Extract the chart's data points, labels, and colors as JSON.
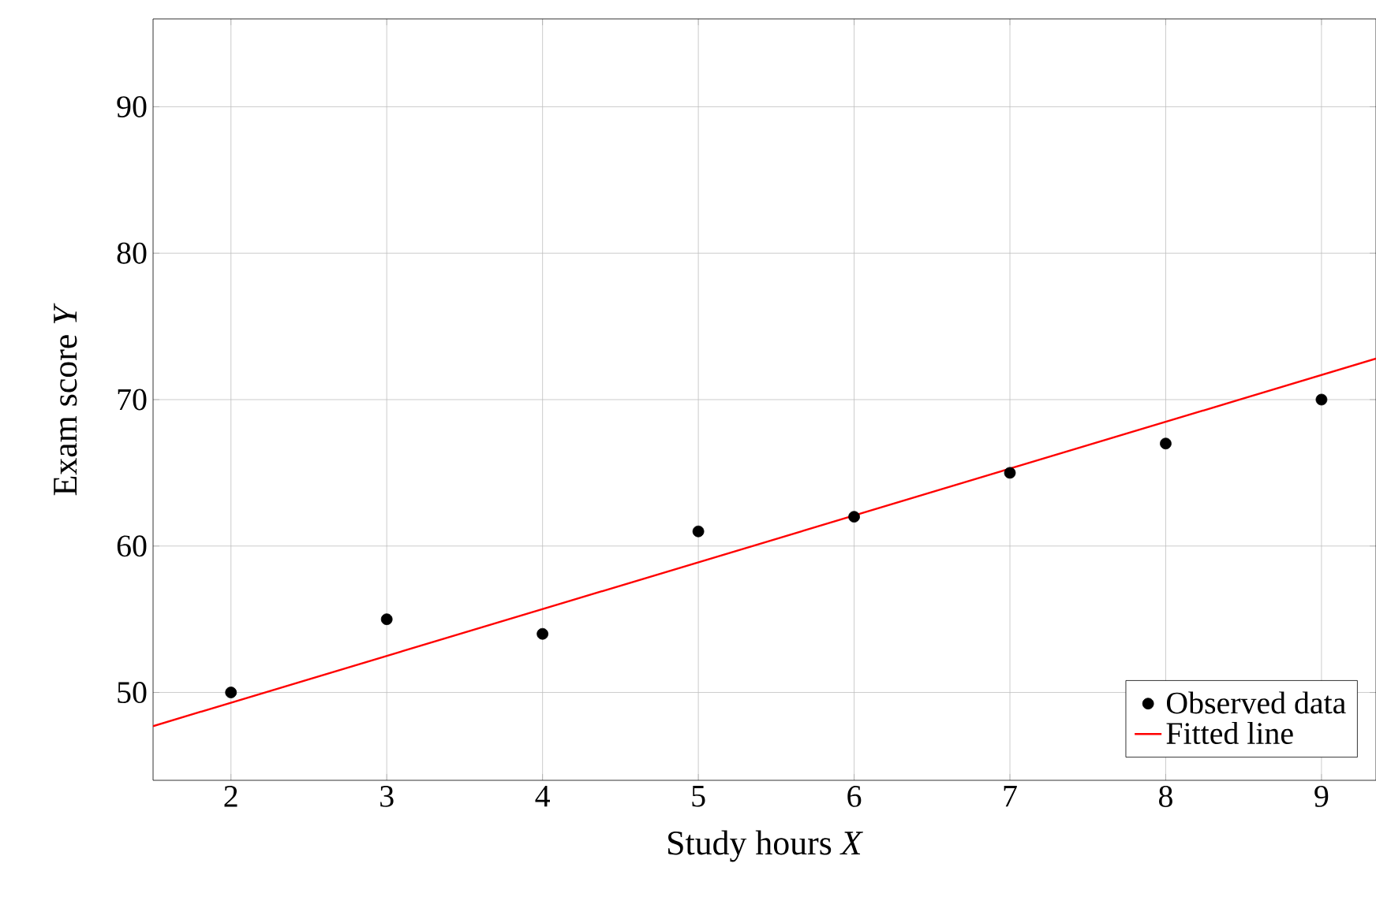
{
  "chart_data": {
    "type": "scatter",
    "xlabel": "Study hours *X*",
    "ylabel": "Exam score *Y*",
    "xlim": [
      1.5,
      9.35
    ],
    "ylim": [
      44,
      96
    ],
    "xticks": [
      2,
      3,
      4,
      5,
      6,
      7,
      8,
      9
    ],
    "yticks": [
      50,
      60,
      70,
      80,
      90
    ],
    "grid": true,
    "legend": "bottom right",
    "series": [
      {
        "name": "Observed data",
        "marker": "circle",
        "color": "#000000",
        "x": [
          2,
          3,
          4,
          5,
          6,
          7,
          8,
          9
        ],
        "values": [
          50,
          55,
          54,
          61,
          62,
          65,
          67,
          70
        ]
      },
      {
        "name": "Fitted line",
        "type": "line",
        "color": "#ff0000",
        "x": [
          1.5,
          9.35
        ],
        "values": [
          47.7,
          72.8
        ]
      }
    ]
  }
}
